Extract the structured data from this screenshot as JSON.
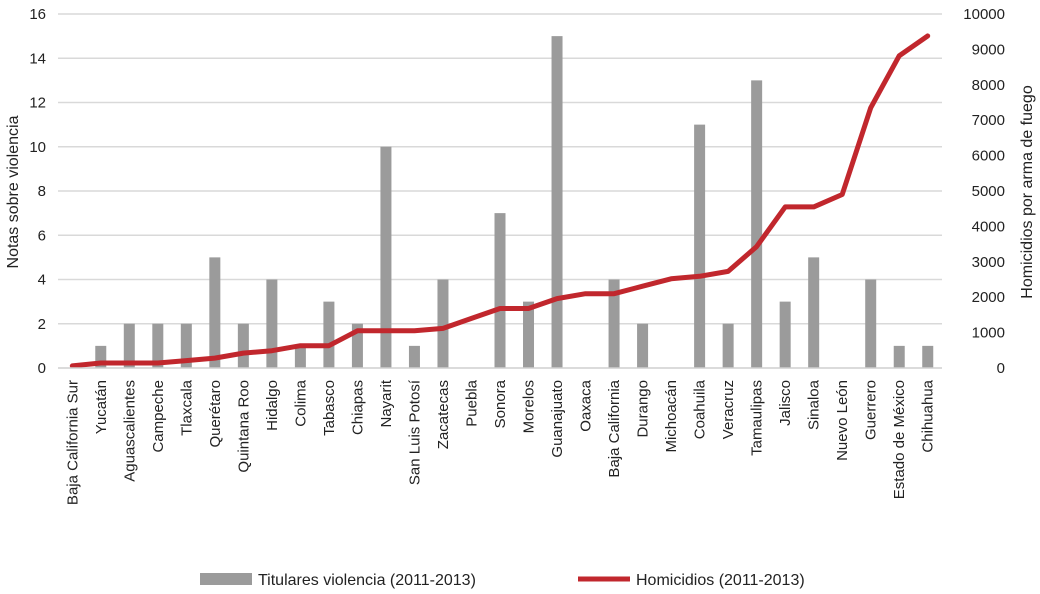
{
  "chart_data": {
    "type": "bar+line",
    "title": "",
    "categories": [
      "Baja California Sur",
      "Yucatán",
      "Aguascalientes",
      "Campeche",
      "Tlaxcala",
      "Querétaro",
      "Quintana Roo",
      "Hidalgo",
      "Colima",
      "Tabasco",
      "Chiapas",
      "Nayarit",
      "San Luis Potosí",
      "Zacatecas",
      "Puebla",
      "Sonora",
      "Morelos",
      "Guanajuato",
      "Oaxaca",
      "Baja California",
      "Durango",
      "Michoacán",
      "Coahuila",
      "Veracruz",
      "Tamaulipas",
      "Jalisco",
      "Sinaloa",
      "Nuevo León",
      "Guerrero",
      "Estado de México",
      "Chihuahua"
    ],
    "ylabel": "Notas sobre violencia",
    "ylabel_right": "Homicidios por arma de fuego",
    "ylim": [
      0,
      16
    ],
    "ylim_right": [
      0,
      10000
    ],
    "yticks": [
      "0",
      "2",
      "4",
      "6",
      "8",
      "10",
      "12",
      "14",
      "16"
    ],
    "yticks_right": [
      "0",
      "1000",
      "2000",
      "3000",
      "4000",
      "5000",
      "6000",
      "7000",
      "8000",
      "9000",
      "10000"
    ],
    "grid": true,
    "legend_position": "bottom",
    "series": [
      {
        "name": "Titulares violencia (2011-2013)",
        "type": "bar",
        "axis": "left",
        "color": "#9b9b9b",
        "values": [
          0,
          1,
          2,
          2,
          2,
          5,
          2,
          4,
          1,
          3,
          2,
          10,
          1,
          4,
          0,
          7,
          3,
          15,
          0,
          4,
          2,
          0,
          11,
          2,
          13,
          3,
          5,
          0,
          4,
          1,
          1
        ]
      },
      {
        "name": "Homicidios (2011-2013)",
        "type": "line",
        "axis": "right",
        "color": "#c1272d",
        "values": [
          60,
          140,
          140,
          140,
          210,
          280,
          420,
          490,
          630,
          630,
          1050,
          1050,
          1050,
          1120,
          1400,
          1680,
          1680,
          1960,
          2100,
          2100,
          2310,
          2520,
          2590,
          2730,
          3430,
          4550,
          4550,
          4900,
          7350,
          8820,
          9380
        ]
      }
    ]
  }
}
